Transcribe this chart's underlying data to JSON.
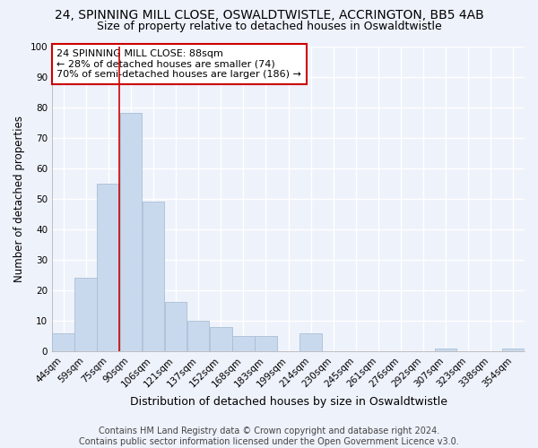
{
  "title": "24, SPINNING MILL CLOSE, OSWALDTWISTLE, ACCRINGTON, BB5 4AB",
  "subtitle": "Size of property relative to detached houses in Oswaldtwistle",
  "xlabel": "Distribution of detached houses by size in Oswaldtwistle",
  "ylabel": "Number of detached properties",
  "bin_labels": [
    "44sqm",
    "59sqm",
    "75sqm",
    "90sqm",
    "106sqm",
    "121sqm",
    "137sqm",
    "152sqm",
    "168sqm",
    "183sqm",
    "199sqm",
    "214sqm",
    "230sqm",
    "245sqm",
    "261sqm",
    "276sqm",
    "292sqm",
    "307sqm",
    "323sqm",
    "338sqm",
    "354sqm"
  ],
  "bar_values": [
    6,
    24,
    55,
    78,
    49,
    16,
    10,
    8,
    5,
    5,
    0,
    6,
    0,
    0,
    0,
    0,
    0,
    1,
    0,
    0,
    1
  ],
  "bar_color": "#c9d9ed",
  "bar_edge_color": "#a8bfd4",
  "vline_x": 2.5,
  "vline_color": "#cc0000",
  "annotation_line1": "24 SPINNING MILL CLOSE: 88sqm",
  "annotation_line2": "← 28% of detached houses are smaller (74)",
  "annotation_line3": "70% of semi-detached houses are larger (186) →",
  "annotation_box_color": "#ffffff",
  "annotation_box_edge_color": "#cc0000",
  "ylim": [
    0,
    100
  ],
  "yticks": [
    0,
    10,
    20,
    30,
    40,
    50,
    60,
    70,
    80,
    90,
    100
  ],
  "footer_text": "Contains HM Land Registry data © Crown copyright and database right 2024.\nContains public sector information licensed under the Open Government Licence v3.0.",
  "bg_color": "#eef2fb",
  "grid_color": "#ffffff",
  "title_fontsize": 10,
  "subtitle_fontsize": 9,
  "xlabel_fontsize": 9,
  "ylabel_fontsize": 8.5,
  "annotation_fontsize": 8,
  "footer_fontsize": 7,
  "tick_fontsize": 7.5
}
